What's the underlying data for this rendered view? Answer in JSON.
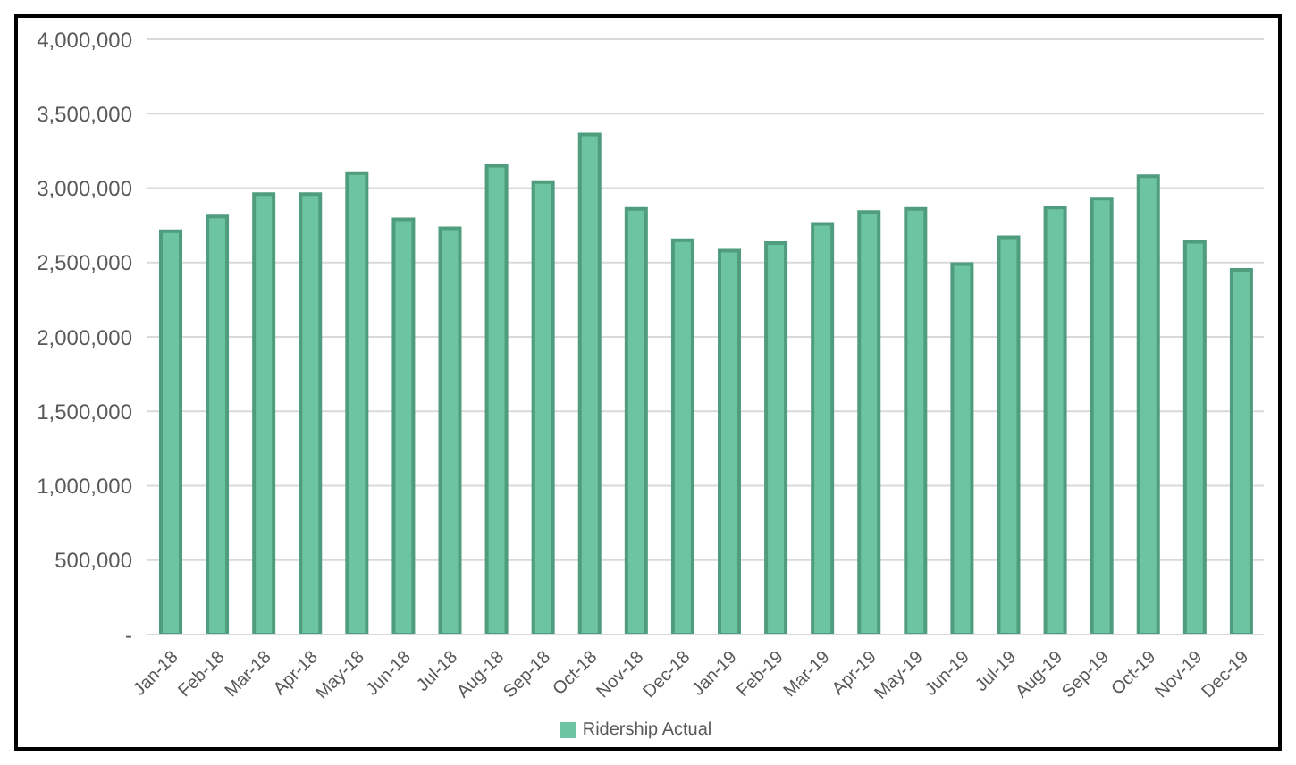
{
  "chart_data": {
    "type": "bar",
    "categories": [
      "Jan-18",
      "Feb-18",
      "Mar-18",
      "Apr-18",
      "May-18",
      "Jun-18",
      "Jul-18",
      "Aug-18",
      "Sep-18",
      "Oct-18",
      "Nov-18",
      "Dec-18",
      "Jan-19",
      "Feb-19",
      "Mar-19",
      "Apr-19",
      "May-19",
      "Jun-19",
      "Jul-19",
      "Aug-19",
      "Sep-19",
      "Oct-19",
      "Nov-19",
      "Dec-19"
    ],
    "series": [
      {
        "name": "Ridership Actual",
        "color": "#6cc4a2",
        "values": [
          2710000,
          2810000,
          2960000,
          2960000,
          3100000,
          2790000,
          2730000,
          3150000,
          3040000,
          3360000,
          2860000,
          2650000,
          2580000,
          2630000,
          2760000,
          2840000,
          2860000,
          2490000,
          2670000,
          2870000,
          2930000,
          3080000,
          2640000,
          2450000
        ]
      }
    ],
    "ylim": [
      0,
      4000000
    ],
    "yticks": [
      {
        "value": 0,
        "label": "-"
      },
      {
        "value": 500000,
        "label": "500,000"
      },
      {
        "value": 1000000,
        "label": "1,000,000"
      },
      {
        "value": 1500000,
        "label": "1,500,000"
      },
      {
        "value": 2000000,
        "label": "2,000,000"
      },
      {
        "value": 2500000,
        "label": "2,500,000"
      },
      {
        "value": 3000000,
        "label": "3,000,000"
      },
      {
        "value": 3500000,
        "label": "3,500,000"
      },
      {
        "value": 4000000,
        "label": "4,000,000"
      }
    ],
    "grid": "y",
    "legend": "bottom"
  }
}
